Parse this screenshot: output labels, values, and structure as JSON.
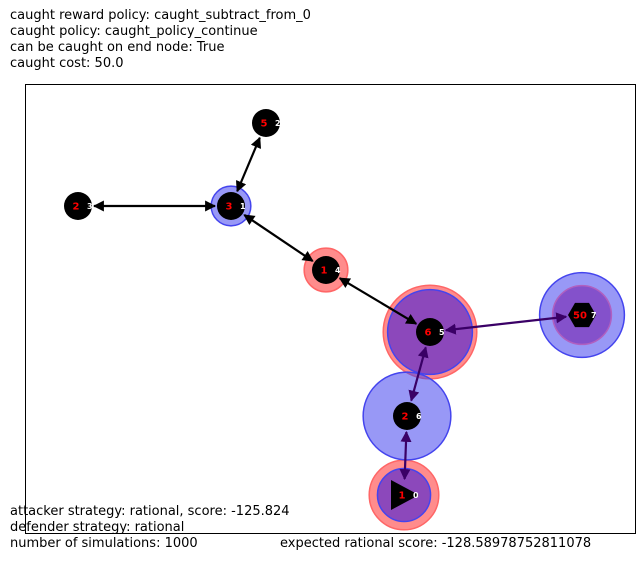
{
  "header": {
    "lines": [
      "caught reward policy: caught_subtract_from_0",
      "caught policy: caught_policy_continue",
      "can be caught on end node: True",
      "caught cost: 50.0"
    ]
  },
  "footer": {
    "lines": [
      "attacker strategy: rational, score: -125.824",
      "defender strategy: rational",
      "number of simulations: 1000"
    ],
    "expected": "expected rational score: -128.58978752811078"
  },
  "colors": {
    "node": "#000000",
    "reward": "#ff0000",
    "attacker_ring": "#ff6666",
    "defender_ring": "#4444ee",
    "overlap": "#8040c0",
    "edge_normal": "#000000",
    "edge_active": "#3a0066"
  },
  "graph": {
    "nodes": [
      {
        "id": "0",
        "reward": "1",
        "shape": "triangle",
        "attacker": 0.35,
        "defender": 0.22
      },
      {
        "id": "1",
        "reward": "3",
        "shape": "circle",
        "attacker": 0.0,
        "defender": 0.08
      },
      {
        "id": "2",
        "reward": "5",
        "shape": "circle",
        "attacker": 0.0,
        "defender": 0.0
      },
      {
        "id": "3",
        "reward": "2",
        "shape": "circle",
        "attacker": 0.0,
        "defender": 0.0
      },
      {
        "id": "4",
        "reward": "1",
        "shape": "circle",
        "attacker": 0.08,
        "defender": 0.0
      },
      {
        "id": "5",
        "reward": "6",
        "shape": "circle",
        "attacker": 0.6,
        "defender": 0.55
      },
      {
        "id": "6",
        "reward": "2",
        "shape": "circle",
        "attacker": 0.0,
        "defender": 0.58
      },
      {
        "id": "7",
        "reward": "50",
        "shape": "hexagon",
        "attacker": 0.0,
        "defender": 0.55,
        "inner": 0.3
      }
    ],
    "edges": [
      {
        "from": "2",
        "to": "1",
        "active": false
      },
      {
        "from": "3",
        "to": "1",
        "active": false
      },
      {
        "from": "1",
        "to": "4",
        "active": false
      },
      {
        "from": "4",
        "to": "5",
        "active": false
      },
      {
        "from": "5",
        "to": "7",
        "active": true
      },
      {
        "from": "5",
        "to": "6",
        "active": true
      },
      {
        "from": "6",
        "to": "0",
        "active": true
      }
    ]
  }
}
